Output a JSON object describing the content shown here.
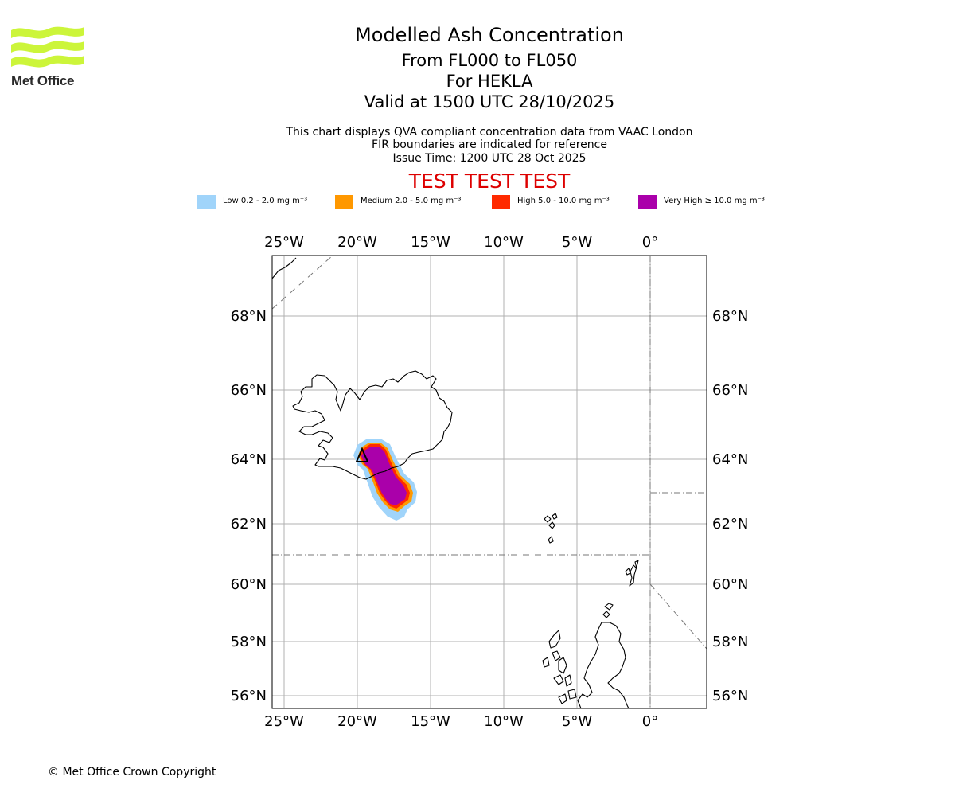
{
  "header": {
    "logo_text": "Met Office",
    "title": "Modelled Ash Concentration",
    "levels": "From FL000 to FL050",
    "volcano": "For HEKLA",
    "valid": "Valid at 1500 UTC 28/10/2025",
    "note1": "This chart displays QVA compliant concentration data from VAAC London",
    "note2": "FIR boundaries are indicated for reference",
    "issue": "Issue Time: 1200 UTC 28 Oct 2025",
    "test": "TEST TEST TEST",
    "test_color": "#dd0000"
  },
  "legend": [
    {
      "label": "Low 0.2 - 2.0 mg m⁻³",
      "color": "#a0d4fa"
    },
    {
      "label": "Medium 2.0 - 5.0 mg m⁻³",
      "color": "#ff9800"
    },
    {
      "label": "High 5.0 - 10.0 mg m⁻³",
      "color": "#ff2a00"
    },
    {
      "label": "Very High ≥ 10.0 mg m⁻³",
      "color": "#aa00aa"
    }
  ],
  "map": {
    "lon_ticks": [
      "25°W",
      "20°W",
      "15°W",
      "10°W",
      "5°W",
      "0°"
    ],
    "lat_ticks": [
      "68°N",
      "66°N",
      "64°N",
      "62°N",
      "60°N",
      "58°N",
      "56°N"
    ],
    "extent": {
      "lon": [
        -25.8,
        3.8
      ],
      "lat": [
        55.6,
        69.7
      ]
    },
    "volcano_marker": "triangle-icon",
    "volcano_name": "HEKLA"
  },
  "footer": {
    "copyright": "© Met Office Crown Copyright"
  }
}
